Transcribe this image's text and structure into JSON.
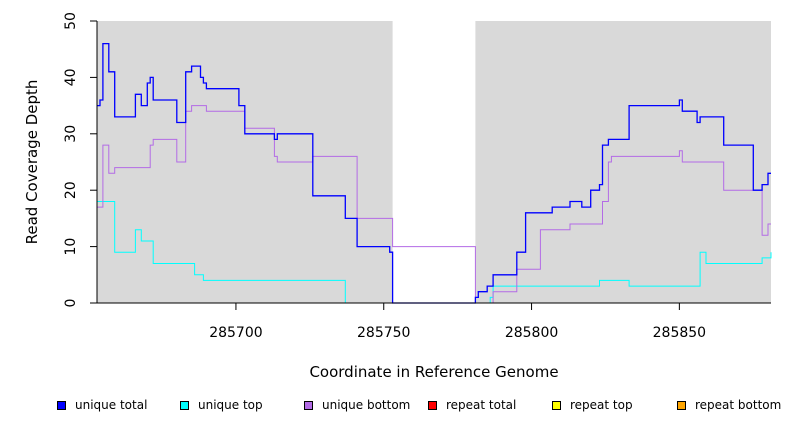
{
  "chart_data": {
    "type": "line",
    "title": "",
    "xlabel": "Coordinate in Reference Genome",
    "ylabel": "Read Coverage Depth",
    "xlim": [
      285653,
      285881
    ],
    "ylim": [
      0,
      50
    ],
    "xticks": [
      285700,
      285750,
      285800,
      285850
    ],
    "yticks": [
      0,
      10,
      20,
      30,
      40,
      50
    ],
    "background": "#d9d9d9",
    "gap": [
      285753,
      285781
    ],
    "legend_position": "bottom",
    "series": [
      {
        "name": "unique total",
        "color": "#0000ff",
        "x": [
          285653,
          285654,
          285655,
          285657,
          285659,
          285666,
          285668,
          285670,
          285671,
          285672,
          285680,
          285683,
          285685,
          285688,
          285689,
          285690,
          285701,
          285703,
          285713,
          285714,
          285726,
          285737,
          285741,
          285752,
          285753,
          285781,
          285782,
          285785,
          285787,
          285795,
          285798,
          285803,
          285807,
          285813,
          285817,
          285820,
          285823,
          285824,
          285826,
          285827,
          285833,
          285850,
          285851,
          285856,
          285857,
          285865,
          285873,
          285875,
          285878,
          285880,
          285881
        ],
        "y": [
          35,
          36,
          46,
          41,
          33,
          37,
          35,
          39,
          40,
          36,
          32,
          41,
          42,
          40,
          39,
          38,
          35,
          30,
          29,
          30,
          19,
          15,
          10,
          9,
          0,
          1,
          2,
          3,
          5,
          9,
          16,
          16,
          17,
          18,
          17,
          20,
          21,
          28,
          29,
          29,
          35,
          36,
          34,
          32,
          33,
          28,
          28,
          20,
          21,
          23,
          23
        ]
      },
      {
        "name": "unique top",
        "color": "#00ffff",
        "x": [
          285653,
          285659,
          285666,
          285668,
          285672,
          285686,
          285689,
          285737,
          285753,
          285781,
          285786,
          285787,
          285820,
          285823,
          285833,
          285857,
          285859,
          285878,
          285881
        ],
        "y": [
          18,
          9,
          13,
          11,
          7,
          5,
          4,
          0,
          0,
          0,
          1,
          3,
          3,
          4,
          3,
          9,
          7,
          8,
          9
        ]
      },
      {
        "name": "unique bottom",
        "color": "#b36be6",
        "x": [
          285653,
          285655,
          285657,
          285659,
          285671,
          285672,
          285680,
          285683,
          285685,
          285690,
          285703,
          285713,
          285714,
          285726,
          285741,
          285753,
          285781,
          285787,
          285795,
          285803,
          285813,
          285824,
          285826,
          285827,
          285850,
          285851,
          285857,
          285865,
          285873,
          285878,
          285880,
          285881
        ],
        "y": [
          17,
          28,
          23,
          24,
          28,
          29,
          25,
          34,
          35,
          34,
          31,
          26,
          25,
          26,
          15,
          10,
          0,
          2,
          6,
          13,
          14,
          18,
          25,
          26,
          27,
          25,
          25,
          20,
          20,
          12,
          14,
          14
        ]
      },
      {
        "name": "repeat total",
        "color": "#ff0000",
        "x": [
          285653,
          285881
        ],
        "y": [
          0,
          0
        ]
      },
      {
        "name": "repeat top",
        "color": "#ffff00",
        "x": [
          285653,
          285881
        ],
        "y": [
          0,
          0
        ]
      },
      {
        "name": "repeat bottom",
        "color": "#ffa500",
        "x": [
          285653,
          285881
        ],
        "y": [
          0,
          0
        ]
      }
    ]
  }
}
